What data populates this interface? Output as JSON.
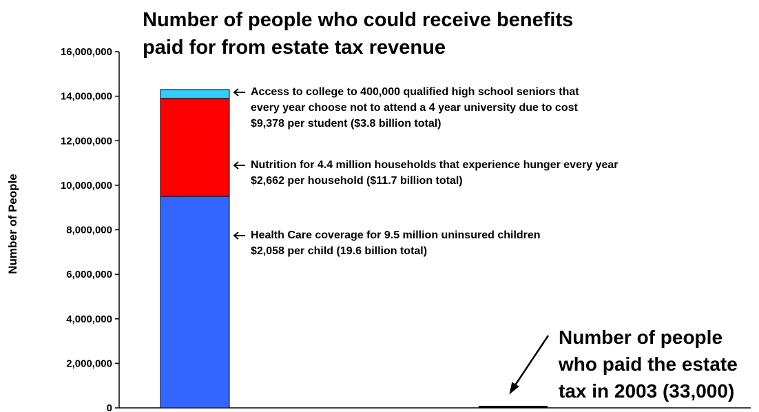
{
  "chart_data": {
    "type": "bar",
    "title_lines": [
      "Number of people who could receive benefits",
      "paid for from estate tax revenue"
    ],
    "ylabel": "Number of People",
    "ylim": [
      0,
      16000000
    ],
    "ytick_values": [
      0,
      2000000,
      4000000,
      6000000,
      8000000,
      10000000,
      12000000,
      14000000,
      16000000
    ],
    "ytick_labels": [
      "0",
      "2,000,000",
      "4,000,000",
      "6,000,000",
      "8,000,000",
      "10,000,000",
      "12,000,000",
      "14,000,000",
      "16,000,000"
    ],
    "grid": false,
    "stacks": [
      {
        "segments": [
          {
            "value": 9500000,
            "color": "#3366ff",
            "annotation": [
              "Health Care coverage for 9.5 million uninsured children",
              "$2,058 per child (19.6 billion total)"
            ]
          },
          {
            "value": 4400000,
            "color": "#ff0000",
            "annotation": [
              "Nutrition for 4.4 million households that experience hunger every year",
              "$2,662 per household ($11.7 billion total)"
            ]
          },
          {
            "value": 400000,
            "color": "#33ccff",
            "annotation": [
              "Access to college to 400,000 qualified high school seniors that",
              "every year choose not to attend a 4 year university due to cost",
              "$9,378 per student ($3.8 billion total)"
            ]
          }
        ]
      },
      {
        "segments": [
          {
            "value": 33000,
            "color": "#000000",
            "annotation": [
              "Number of people",
              "who paid the estate",
              "tax in 2003 (33,000)"
            ]
          }
        ]
      }
    ]
  }
}
